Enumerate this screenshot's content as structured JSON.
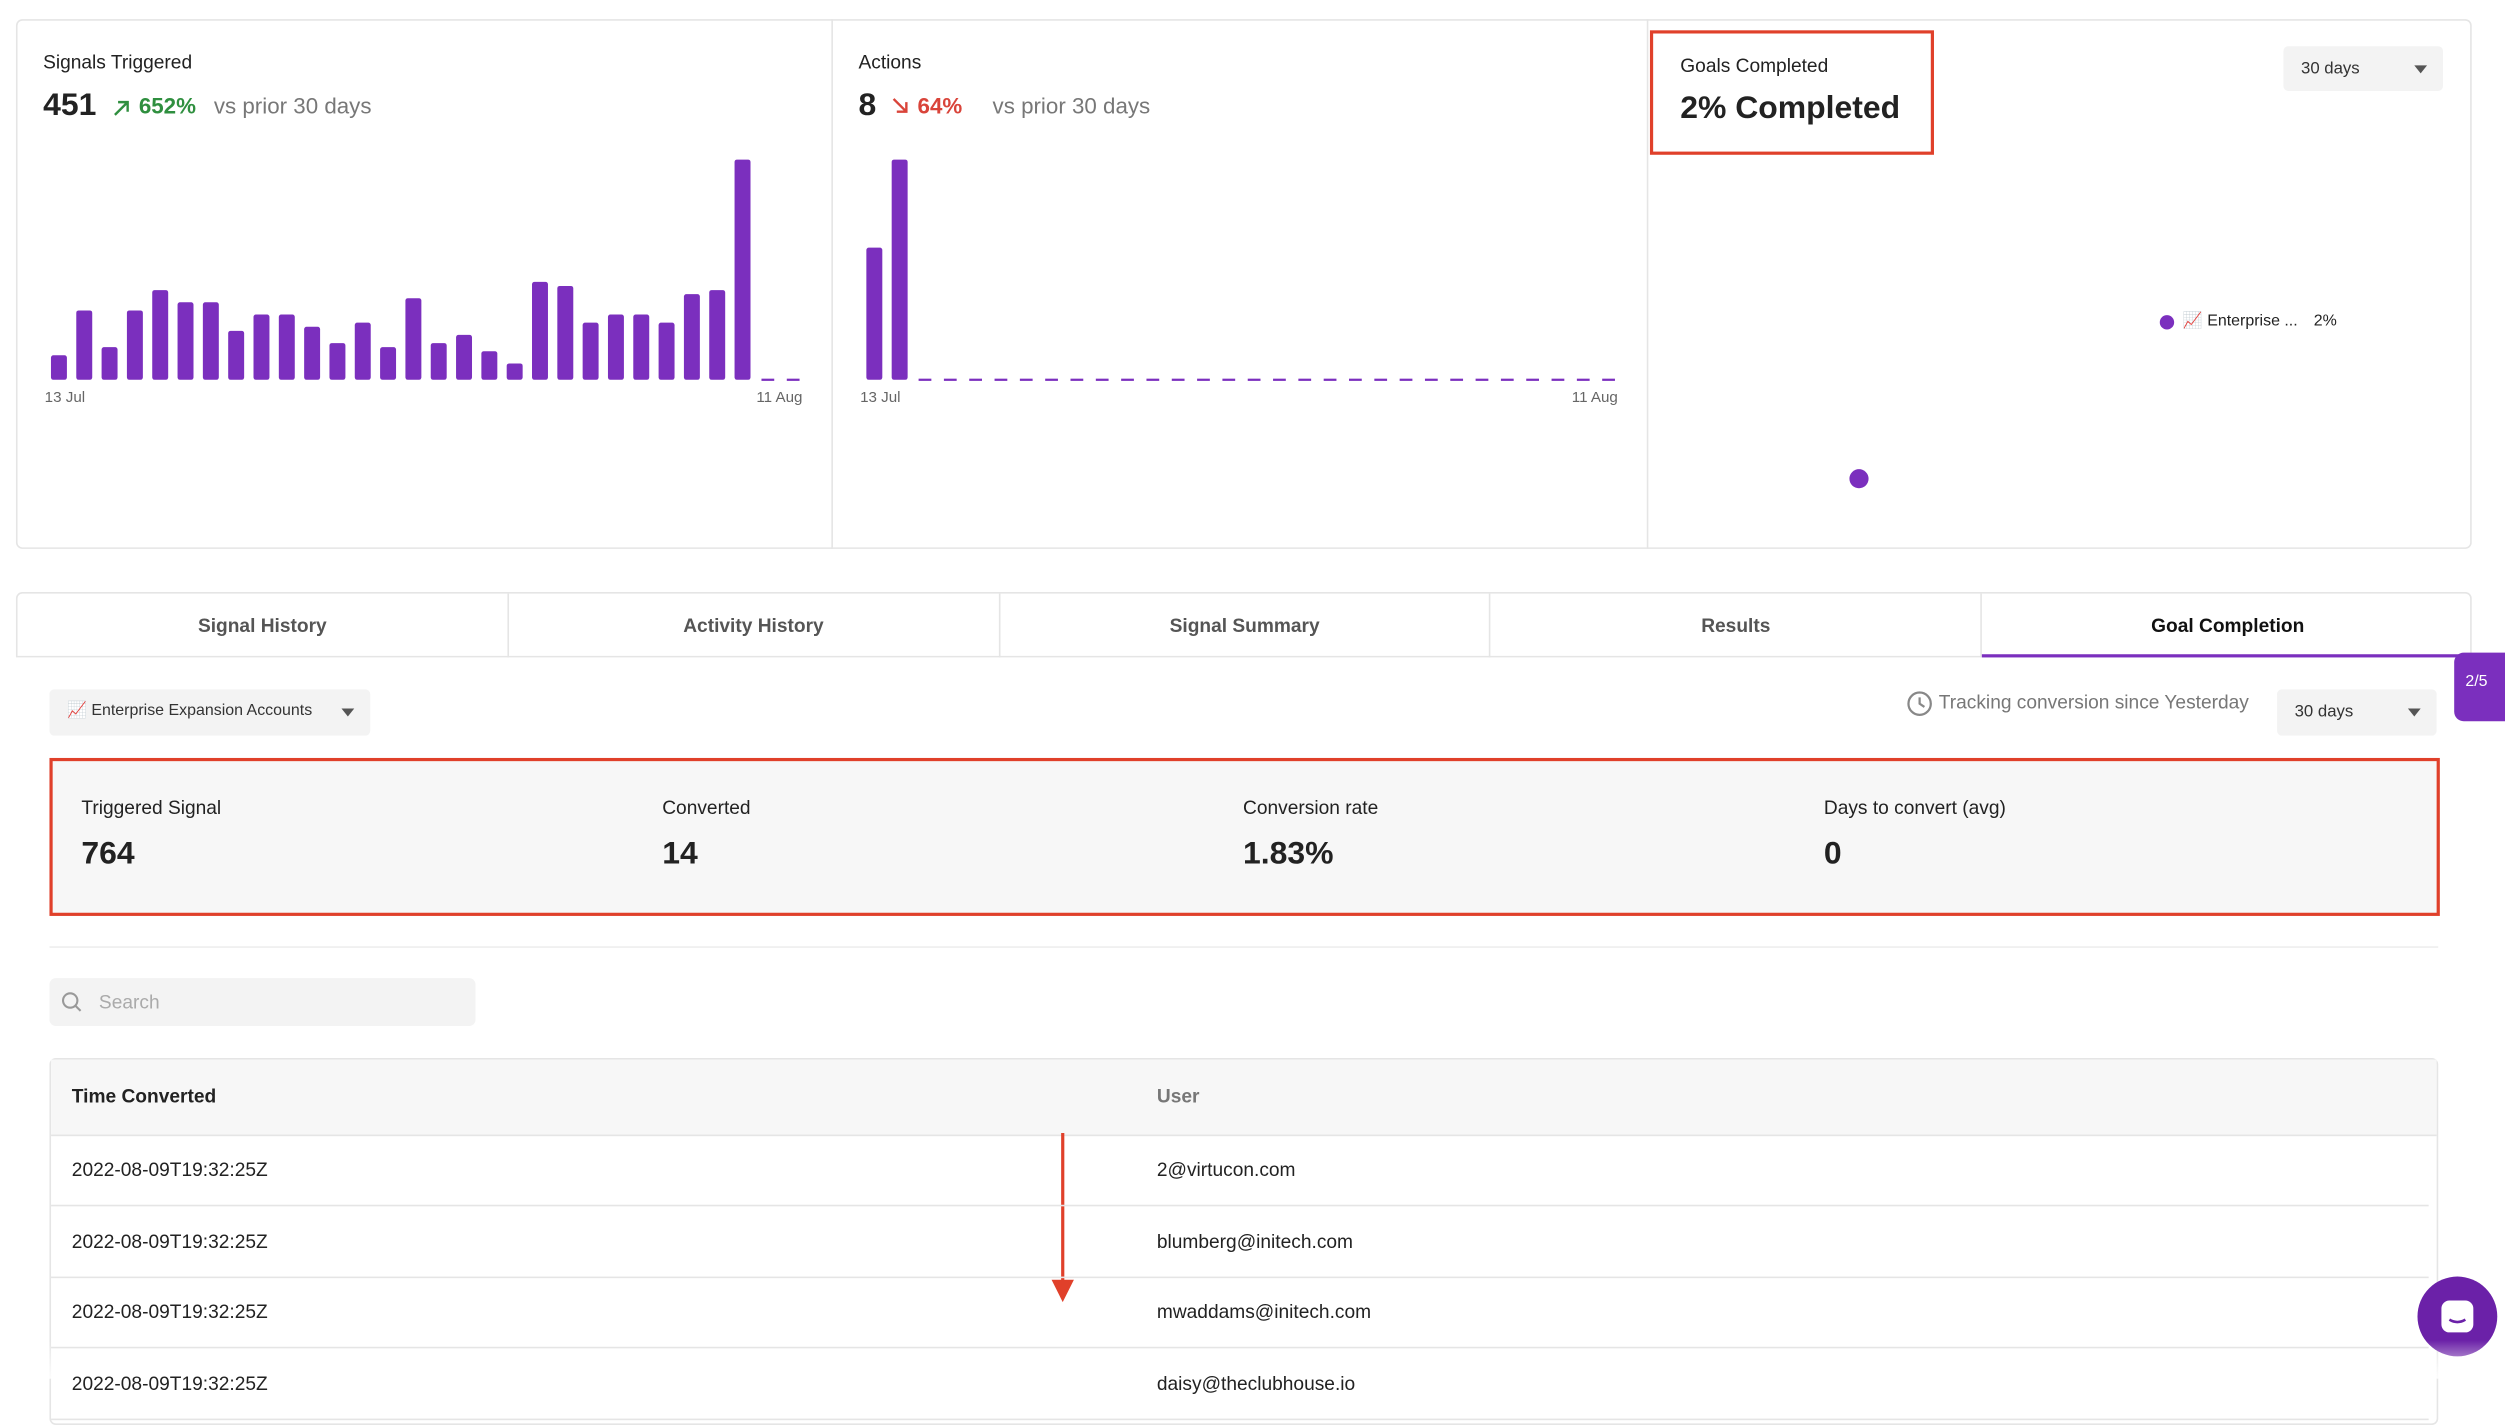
{
  "cards": [
    {
      "title": "Signals Triggered",
      "value": "451",
      "change": "652%",
      "direction": "up",
      "comparison": "vs prior 30 days",
      "start_label": "13 Jul",
      "end_label": "11 Aug",
      "color": "#7b2fbe",
      "ylim": [
        0,
        54
      ],
      "bars": [
        6,
        17,
        8,
        17,
        22,
        19,
        19,
        12,
        16,
        16,
        13,
        9,
        14,
        8,
        20,
        9,
        11,
        7,
        4,
        24,
        23,
        14,
        16,
        16,
        14,
        21,
        22,
        54,
        0,
        0
      ]
    },
    {
      "title": "Actions",
      "value": "8",
      "change": "64%",
      "direction": "down",
      "comparison": "vs prior 30 days",
      "start_label": "13 Jul",
      "end_label": "11 Aug",
      "color": "#7b2fbe",
      "ylim": [
        0,
        5
      ],
      "bars": [
        3,
        5,
        0,
        0,
        0,
        0,
        0,
        0,
        0,
        0,
        0,
        0,
        0,
        0,
        0,
        0,
        0,
        0,
        0,
        0,
        0,
        0,
        0,
        0,
        0,
        0,
        0,
        0,
        0,
        0
      ]
    }
  ],
  "goals": {
    "title": "Goals Completed",
    "value": "2% Completed",
    "range": "30 days",
    "legend": "📈 Enterprise ...",
    "legend_value": "2%"
  },
  "tabs": [
    "Signal History",
    "Activity History",
    "Signal Summary",
    "Results",
    "Goal Completion"
  ],
  "active_tab": 4,
  "selector": "📈 Enterprise Expansion Accounts",
  "tracking": "Tracking conversion since Yesterday",
  "range": "30 days",
  "stats": [
    {
      "label": "Triggered Signal",
      "value": "764"
    },
    {
      "label": "Converted",
      "value": "14"
    },
    {
      "label": "Conversion rate",
      "value": "1.83%"
    },
    {
      "label": "Days to convert (avg)",
      "value": "0"
    }
  ],
  "search_placeholder": "Search",
  "table": {
    "columns": [
      "Time Converted",
      "User"
    ],
    "rows": [
      [
        "2022-08-09T19:32:25Z",
        "2@virtucon.com"
      ],
      [
        "2022-08-09T19:32:25Z",
        "blumberg@initech.com"
      ],
      [
        "2022-08-09T19:32:25Z",
        "mwaddams@initech.com"
      ],
      [
        "2022-08-09T19:32:25Z",
        "daisy@theclubhouse.io"
      ]
    ]
  },
  "widget": "2/5"
}
